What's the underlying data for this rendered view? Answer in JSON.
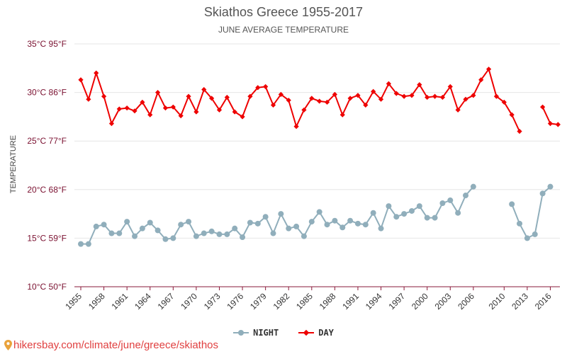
{
  "header": {
    "title": "Skiathos Greece 1955-2017",
    "subtitle": "JUNE AVERAGE TEMPERATURE"
  },
  "source": {
    "text": "hikersbay.com/climate/june/greece/skiathos",
    "icon": "location-pin-icon"
  },
  "legend": [
    {
      "label": "NIGHT",
      "color": "#90aebb",
      "marker": "circle"
    },
    {
      "label": "DAY",
      "color": "#ee0000",
      "marker": "diamond"
    }
  ],
  "chart_data": {
    "type": "line",
    "title": "Skiathos Greece 1955-2017",
    "subtitle": "JUNE AVERAGE TEMPERATURE",
    "xlabel": "",
    "ylabel": "TEMPERATURE",
    "ylim": [
      10,
      35
    ],
    "xlim": [
      1955,
      2017
    ],
    "grid": true,
    "legend_position": "bottom",
    "y_ticks": [
      {
        "value": 10,
        "label": "10°C 50°F"
      },
      {
        "value": 15,
        "label": "15°C 59°F"
      },
      {
        "value": 20,
        "label": "20°C 68°F"
      },
      {
        "value": 25,
        "label": "25°C 77°F"
      },
      {
        "value": 30,
        "label": "30°C 86°F"
      },
      {
        "value": 35,
        "label": "35°C 95°F"
      }
    ],
    "x_ticks": [
      1955,
      1958,
      1961,
      1964,
      1967,
      1970,
      1973,
      1976,
      1979,
      1982,
      1985,
      1988,
      1991,
      1994,
      1997,
      2000,
      2003,
      2006,
      2010,
      2013,
      2016
    ],
    "series": [
      {
        "name": "NIGHT",
        "color": "#90aebb",
        "marker": "circle",
        "x": [
          1955,
          1956,
          1957,
          1958,
          1959,
          1960,
          1961,
          1962,
          1963,
          1964,
          1965,
          1966,
          1967,
          1968,
          1969,
          1970,
          1971,
          1972,
          1973,
          1974,
          1975,
          1976,
          1977,
          1978,
          1979,
          1980,
          1981,
          1982,
          1983,
          1984,
          1985,
          1986,
          1987,
          1988,
          1989,
          1990,
          1991,
          1992,
          1993,
          1994,
          1995,
          1996,
          1997,
          1998,
          1999,
          2000,
          2001,
          2002,
          2003,
          2004,
          2005,
          2006,
          2007,
          2008,
          2009,
          2010,
          2011,
          2012,
          2013,
          2014,
          2015,
          2016,
          2017
        ],
        "values": [
          14.4,
          14.4,
          16.2,
          16.4,
          15.5,
          15.5,
          16.7,
          15.2,
          16.0,
          16.6,
          15.8,
          14.9,
          15.0,
          16.4,
          16.7,
          15.2,
          15.5,
          15.7,
          15.4,
          15.4,
          16.0,
          15.1,
          16.6,
          16.5,
          17.2,
          15.5,
          17.5,
          16.0,
          16.2,
          15.2,
          16.7,
          17.7,
          16.4,
          16.8,
          16.1,
          16.8,
          16.5,
          16.4,
          17.6,
          16.0,
          18.3,
          17.2,
          17.5,
          17.8,
          18.3,
          17.1,
          17.1,
          18.6,
          18.9,
          17.6,
          19.4,
          20.3,
          null,
          null,
          null,
          null,
          18.5,
          16.5,
          15.0,
          15.4,
          19.6,
          20.3,
          null
        ]
      },
      {
        "name": "DAY",
        "color": "#ee0000",
        "marker": "diamond",
        "x": [
          1955,
          1956,
          1957,
          1958,
          1959,
          1960,
          1961,
          1962,
          1963,
          1964,
          1965,
          1966,
          1967,
          1968,
          1969,
          1970,
          1971,
          1972,
          1973,
          1974,
          1975,
          1976,
          1977,
          1978,
          1979,
          1980,
          1981,
          1982,
          1983,
          1984,
          1985,
          1986,
          1987,
          1988,
          1989,
          1990,
          1991,
          1992,
          1993,
          1994,
          1995,
          1996,
          1997,
          1998,
          1999,
          2000,
          2001,
          2002,
          2003,
          2004,
          2005,
          2006,
          2007,
          2008,
          2009,
          2010,
          2011,
          2012,
          2013,
          2014,
          2015,
          2016,
          2017
        ],
        "values": [
          31.3,
          29.3,
          32.0,
          29.6,
          26.8,
          28.3,
          28.4,
          28.1,
          29.0,
          27.7,
          30.0,
          28.4,
          28.5,
          27.6,
          29.6,
          28.0,
          30.3,
          29.4,
          28.2,
          29.5,
          28.0,
          27.5,
          29.6,
          30.5,
          30.6,
          28.7,
          29.8,
          29.2,
          26.5,
          28.2,
          29.4,
          29.1,
          29.0,
          29.8,
          27.7,
          29.4,
          29.7,
          28.7,
          30.1,
          29.3,
          30.9,
          29.9,
          29.6,
          29.7,
          30.8,
          29.5,
          29.6,
          29.5,
          30.6,
          28.2,
          29.3,
          29.7,
          31.3,
          32.4,
          29.6,
          29.0,
          27.7,
          26.0,
          null,
          null,
          28.5,
          26.8,
          26.7
        ]
      }
    ]
  }
}
